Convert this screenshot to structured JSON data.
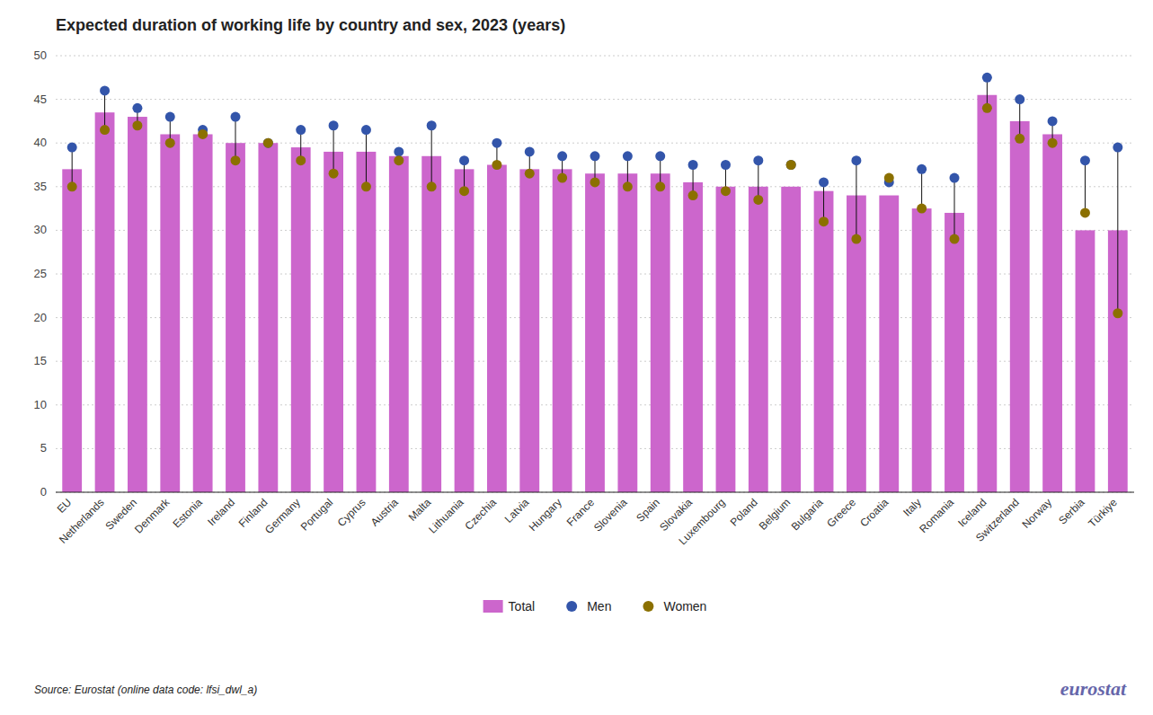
{
  "chart_data": {
    "type": "bar",
    "title": "Expected duration of working life by country and sex, 2023 (years)",
    "categories": [
      "EU",
      "Netherlands",
      "Sweden",
      "Denmark",
      "Estonia",
      "Ireland",
      "Finland",
      "Germany",
      "Portugal",
      "Cyprus",
      "Austria",
      "Malta",
      "Lithuania",
      "Czechia",
      "Latvia",
      "Hungary",
      "France",
      "Slovenia",
      "Spain",
      "Slovakia",
      "Luxembourg",
      "Poland",
      "Belgium",
      "Bulgaria",
      "Greece",
      "Croatia",
      "Italy",
      "Romania",
      "Iceland",
      "Switzerland",
      "Norway",
      "Serbia",
      "Türkiye"
    ],
    "series": [
      {
        "name": "Total",
        "type": "bar",
        "color": "#CC66CC",
        "values": [
          37.0,
          43.5,
          43.0,
          41.0,
          41.0,
          40.0,
          40.0,
          39.5,
          39.0,
          39.0,
          38.5,
          38.5,
          37.0,
          37.5,
          37.0,
          37.0,
          36.5,
          36.5,
          36.5,
          35.5,
          35.0,
          35.0,
          35.0,
          34.5,
          34.0,
          34.0,
          32.5,
          32.0,
          45.5,
          42.5,
          41.0,
          30.0,
          30.0
        ]
      },
      {
        "name": "Men",
        "type": "scatter",
        "marker": "circle",
        "color": "#3355AA",
        "values": [
          39.5,
          46.0,
          44.0,
          43.0,
          41.5,
          43.0,
          40.0,
          41.5,
          42.0,
          41.5,
          39.0,
          42.0,
          38.0,
          40.0,
          39.0,
          38.5,
          38.5,
          38.5,
          38.5,
          37.5,
          37.5,
          38.0,
          37.5,
          35.5,
          38.0,
          35.5,
          37.0,
          36.0,
          47.5,
          45.0,
          42.5,
          38.0,
          39.5
        ]
      },
      {
        "name": "Women",
        "type": "scatter",
        "marker": "circle",
        "color": "#8B7000",
        "values": [
          35.0,
          41.5,
          42.0,
          40.0,
          41.0,
          38.0,
          40.0,
          38.0,
          36.5,
          35.0,
          38.0,
          35.0,
          34.5,
          37.5,
          36.5,
          36.0,
          35.5,
          35.0,
          35.0,
          34.0,
          34.5,
          33.5,
          37.5,
          31.0,
          29.0,
          36.0,
          32.5,
          29.0,
          44.0,
          40.5,
          40.0,
          32.0,
          20.5
        ]
      }
    ],
    "ylim": [
      0,
      50
    ],
    "yticks": [
      0,
      5,
      10,
      15,
      20,
      25,
      30,
      35,
      40,
      45,
      50
    ],
    "grid": true,
    "legend": "bottom",
    "annotations": [
      "Source: Eurostat (online data code: lfsi_dwl_a)",
      "eurostat"
    ]
  }
}
